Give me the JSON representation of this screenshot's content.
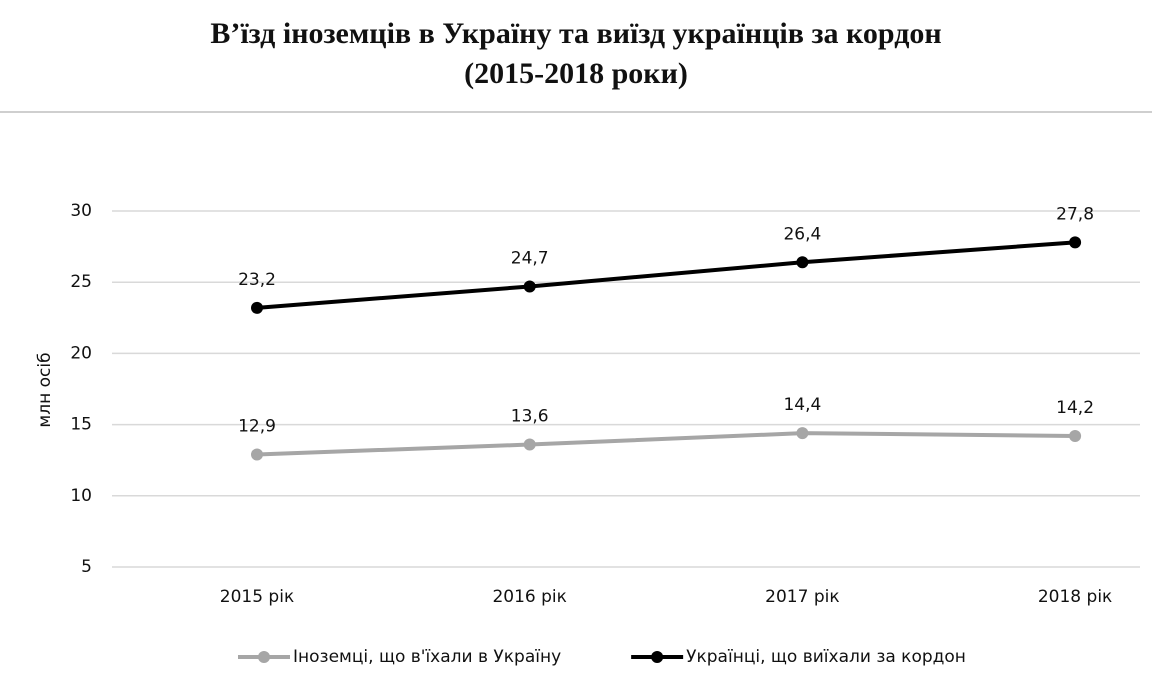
{
  "chart_data": {
    "type": "line",
    "title": [
      "В’їзд іноземців в Україну та виїзд українців за кордон",
      "(2015-2018 роки)"
    ],
    "y_label": "млн осіб",
    "categories": [
      "2015 рік",
      "2016 рік",
      "2017 рік",
      "2018 рік"
    ],
    "series": [
      {
        "name": "Іноземці, що в'їхали в Україну",
        "color": "#a6a6a6",
        "values": [
          12.9,
          13.6,
          14.4,
          14.2
        ],
        "value_labels": [
          "12,9",
          "13,6",
          "14,4",
          "14,2"
        ]
      },
      {
        "name": "Українці, що виїхали за кордон",
        "color": "#000000",
        "values": [
          23.2,
          24.7,
          26.4,
          27.8
        ],
        "value_labels": [
          "23,2",
          "24,7",
          "26,4",
          "27,8"
        ]
      }
    ],
    "ylim": [
      5,
      30
    ],
    "yticks": [
      5,
      10,
      15,
      20,
      25,
      30
    ],
    "grid": true,
    "legend": "bottom"
  }
}
